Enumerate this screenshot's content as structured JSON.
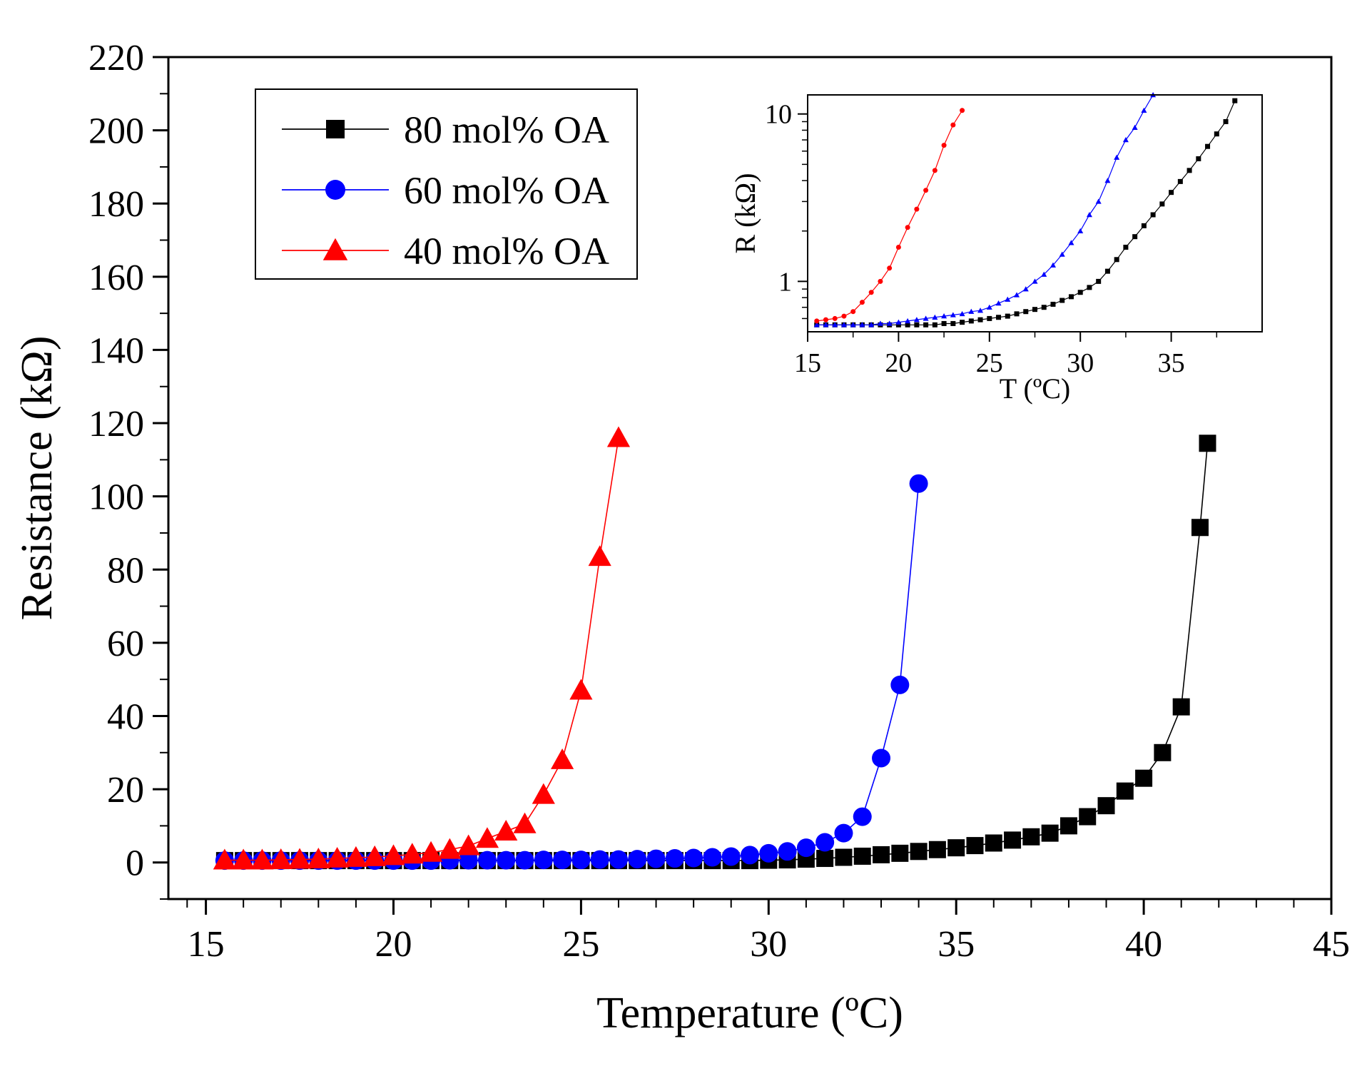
{
  "chart_data": [
    {
      "type": "line",
      "xlabel": "Temperature (ºC)",
      "ylabel": "Resistance (kΩ)",
      "xlim": [
        14,
        45
      ],
      "ylim": [
        -10,
        220
      ],
      "xticks": [
        15,
        20,
        25,
        30,
        35,
        40,
        45
      ],
      "yticks": [
        0,
        20,
        40,
        60,
        80,
        100,
        120,
        140,
        160,
        180,
        200,
        220
      ],
      "legend_position": "top-left",
      "series": [
        {
          "name": "80 mol% OA",
          "color": "#000000",
          "marker": "square",
          "x": [
            15.5,
            16,
            16.5,
            17,
            17.5,
            18,
            18.5,
            19,
            19.5,
            20,
            20.5,
            21,
            21.5,
            22,
            22.5,
            23,
            23.5,
            24,
            24.5,
            25,
            25.5,
            26,
            26.5,
            27,
            27.5,
            28,
            28.5,
            29,
            29.5,
            30,
            30.5,
            31,
            31.5,
            32,
            32.5,
            33,
            33.5,
            34,
            34.5,
            35,
            35.5,
            36,
            36.5,
            37,
            37.5,
            38,
            38.5,
            39,
            39.5,
            40,
            40.5,
            41,
            41.5,
            41.7
          ],
          "y": [
            0.5,
            0.5,
            0.5,
            0.5,
            0.5,
            0.5,
            0.5,
            0.5,
            0.5,
            0.5,
            0.5,
            0.5,
            0.5,
            0.5,
            0.5,
            0.5,
            0.5,
            0.5,
            0.5,
            0.5,
            0.5,
            0.5,
            0.5,
            0.5,
            0.5,
            0.5,
            0.5,
            0.5,
            0.5,
            0.6,
            0.7,
            0.9,
            1.1,
            1.4,
            1.7,
            2.1,
            2.5,
            3.0,
            3.5,
            4.0,
            4.6,
            5.3,
            6.1,
            7.0,
            8.0,
            10.0,
            12.5,
            15.5,
            19.5,
            23.0,
            30.0,
            42.5,
            91.5,
            114.5
          ]
        },
        {
          "name": "60 mol% OA",
          "color": "#0000ff",
          "marker": "circle",
          "x": [
            15.5,
            16,
            16.5,
            17,
            17.5,
            18,
            18.5,
            19,
            19.5,
            20,
            20.5,
            21,
            21.5,
            22,
            22.5,
            23,
            23.5,
            24,
            24.5,
            25,
            25.5,
            26,
            26.5,
            27,
            27.5,
            28,
            28.5,
            29,
            29.5,
            30,
            30.5,
            31,
            31.5,
            32,
            32.5,
            33,
            33.5,
            34
          ],
          "y": [
            0.5,
            0.5,
            0.5,
            0.5,
            0.5,
            0.5,
            0.5,
            0.5,
            0.5,
            0.5,
            0.5,
            0.5,
            0.6,
            0.6,
            0.6,
            0.6,
            0.6,
            0.7,
            0.7,
            0.7,
            0.8,
            0.8,
            0.9,
            1.0,
            1.1,
            1.2,
            1.4,
            1.6,
            2.0,
            2.5,
            3.0,
            4.0,
            5.5,
            8.0,
            12.5,
            28.5,
            48.5,
            103.5
          ]
        },
        {
          "name": "40 mol% OA",
          "color": "#ff0000",
          "marker": "triangle",
          "x": [
            15.5,
            16,
            16.5,
            17,
            17.5,
            18,
            18.5,
            19,
            19.5,
            20,
            20.5,
            21,
            21.5,
            22,
            22.5,
            23,
            23.5,
            24,
            24.5,
            25,
            25.5,
            26
          ],
          "y": [
            0.6,
            0.6,
            0.6,
            0.7,
            0.8,
            0.9,
            1.1,
            1.3,
            1.5,
            1.8,
            2.2,
            2.7,
            3.5,
            4.5,
            6.5,
            8.5,
            10.5,
            18.5,
            28.0,
            47.0,
            83.5,
            116.0
          ]
        }
      ]
    },
    {
      "type": "line",
      "role": "inset",
      "xlabel": "T (ºC)",
      "ylabel": "R (kΩ)",
      "yscale": "log",
      "xlim": [
        15,
        40
      ],
      "ylim": [
        0.5,
        13
      ],
      "xticks": [
        15,
        20,
        25,
        30,
        35
      ],
      "yticks": [
        1,
        10
      ],
      "series": [
        {
          "name": "80 mol% OA",
          "color": "#000000",
          "marker": "square",
          "x": [
            15.5,
            16,
            16.5,
            17,
            17.5,
            18,
            18.5,
            19,
            19.5,
            20,
            20.5,
            21,
            21.5,
            22,
            22.5,
            23,
            23.5,
            24,
            24.5,
            25,
            25.5,
            26,
            26.5,
            27,
            27.5,
            28,
            28.5,
            29,
            29.5,
            30,
            30.5,
            31,
            31.5,
            32,
            32.5,
            33,
            33.5,
            34,
            34.5,
            35,
            35.5,
            36,
            36.5,
            37,
            37.5,
            38,
            38.5
          ],
          "y": [
            0.55,
            0.55,
            0.55,
            0.55,
            0.55,
            0.55,
            0.55,
            0.55,
            0.55,
            0.55,
            0.55,
            0.55,
            0.55,
            0.55,
            0.56,
            0.56,
            0.57,
            0.58,
            0.59,
            0.6,
            0.61,
            0.62,
            0.64,
            0.66,
            0.68,
            0.7,
            0.73,
            0.77,
            0.81,
            0.86,
            0.92,
            1.0,
            1.15,
            1.35,
            1.6,
            1.85,
            2.15,
            2.5,
            2.9,
            3.4,
            3.95,
            4.6,
            5.4,
            6.4,
            7.6,
            9.0,
            12.0
          ]
        },
        {
          "name": "60 mol% OA",
          "color": "#0000ff",
          "marker": "triangle",
          "x": [
            15.5,
            16,
            16.5,
            17,
            17.5,
            18,
            18.5,
            19,
            19.5,
            20,
            20.5,
            21,
            21.5,
            22,
            22.5,
            23,
            23.5,
            24,
            24.5,
            25,
            25.5,
            26,
            26.5,
            27,
            27.5,
            28,
            28.5,
            29,
            29.5,
            30,
            30.5,
            31,
            31.5,
            32,
            32.5,
            33,
            33.5,
            34
          ],
          "y": [
            0.55,
            0.55,
            0.55,
            0.55,
            0.55,
            0.55,
            0.55,
            0.56,
            0.56,
            0.57,
            0.58,
            0.59,
            0.6,
            0.61,
            0.62,
            0.63,
            0.64,
            0.66,
            0.67,
            0.7,
            0.74,
            0.78,
            0.83,
            0.9,
            1.0,
            1.1,
            1.25,
            1.45,
            1.7,
            2.0,
            2.5,
            3.0,
            4.0,
            5.5,
            7.0,
            8.3,
            10.5,
            13.0
          ]
        },
        {
          "name": "40 mol% OA",
          "color": "#ff0000",
          "marker": "circle",
          "x": [
            15.5,
            16,
            16.5,
            17,
            17.5,
            18,
            18.5,
            19,
            19.5,
            20,
            20.5,
            21,
            21.5,
            22,
            22.5,
            23,
            23.5
          ],
          "y": [
            0.58,
            0.59,
            0.6,
            0.62,
            0.66,
            0.75,
            0.86,
            1.0,
            1.2,
            1.6,
            2.1,
            2.7,
            3.5,
            4.6,
            6.5,
            8.6,
            10.5
          ]
        }
      ]
    }
  ]
}
